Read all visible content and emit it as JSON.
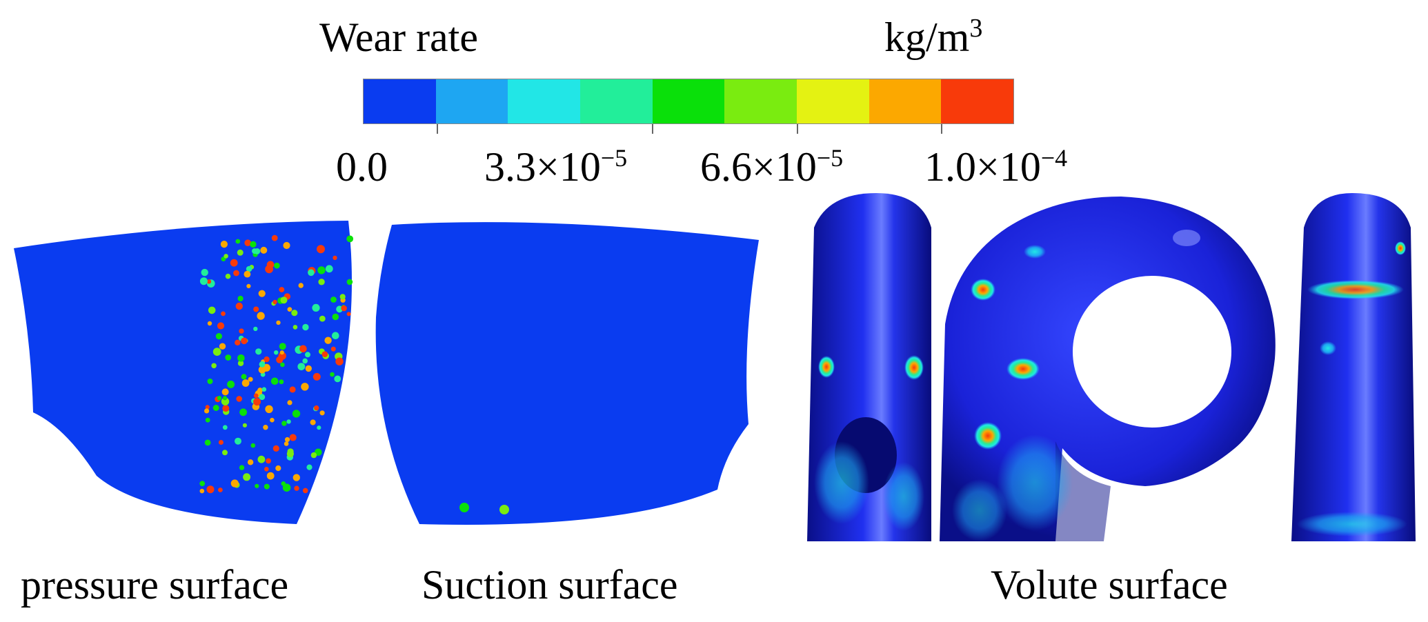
{
  "legend": {
    "title": "Wear rate",
    "unit_base": "kg/m",
    "unit_exp": "3",
    "colors": [
      "#0a3cf0",
      "#1ea6f2",
      "#22e6e6",
      "#22ee9a",
      "#0ae00a",
      "#7aec10",
      "#e4f212",
      "#fca800",
      "#f83a0a"
    ],
    "ticks": [
      {
        "mantissa": "0.0",
        "exp": ""
      },
      {
        "mantissa": "3.3×10",
        "exp": "−5"
      },
      {
        "mantissa": "6.6×10",
        "exp": "−5"
      },
      {
        "mantissa": "1.0×10",
        "exp": "−4"
      }
    ]
  },
  "captions": {
    "pressure": "pressure surface",
    "suction": "Suction surface",
    "volute": "Volute surface"
  },
  "surface_color": "#0a3cf0",
  "volute_color": "#1a22d8"
}
